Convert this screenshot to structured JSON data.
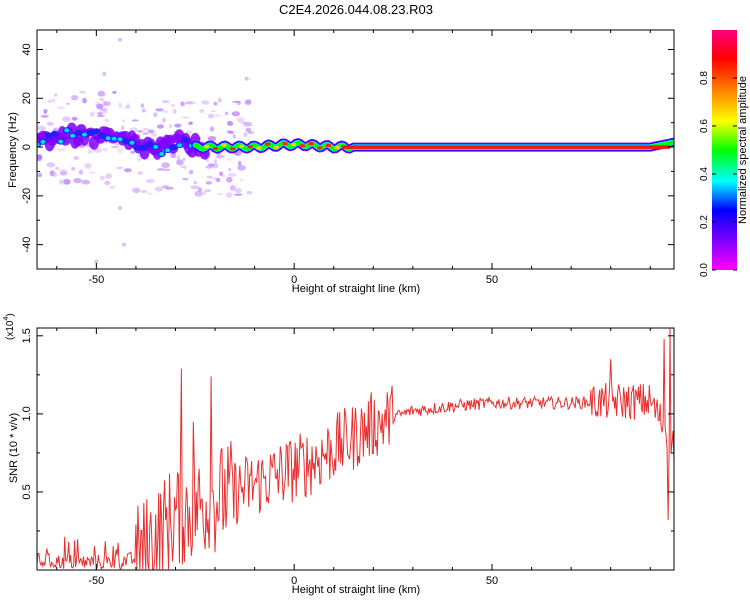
{
  "title": "C2E4.2026.044.08.23.R03",
  "chart_data": [
    {
      "type": "heatmap",
      "xlabel": "Height of straight line (km)",
      "ylabel": "Frequency (Hz)",
      "xlim": [
        -65,
        96
      ],
      "ylim": [
        -50,
        48
      ],
      "xticks": [
        -50,
        0,
        50
      ],
      "yticks": [
        -40,
        -20,
        0,
        20,
        40
      ],
      "xtick_labels": [
        "-50",
        "0",
        "50"
      ],
      "ytick_labels": [
        "-40",
        "-20",
        "0",
        "20",
        "40"
      ],
      "colorbar": {
        "label": "Normalized spectral amplitude",
        "range": [
          0,
          1
        ],
        "ticks": [
          0.0,
          0.2,
          0.4,
          0.6,
          0.8
        ],
        "tick_labels": [
          "0.0",
          "0.2",
          "0.4",
          "0.6",
          "0.8"
        ],
        "colors": [
          "#ff00ff",
          "#8000ff",
          "#0000ff",
          "#00ffff",
          "#00ff00",
          "#ffff00",
          "#ff8000",
          "#ff0000",
          "#ff0080"
        ]
      },
      "ridge": {
        "description_points_x": [
          -65,
          -55,
          -45,
          -35,
          -28,
          -25,
          -20,
          -10,
          -2,
          2,
          10,
          20,
          50,
          90,
          96
        ],
        "frequency_hz": [
          3,
          5,
          3,
          -1,
          2,
          0,
          0,
          0,
          1,
          1,
          0,
          0,
          0,
          0,
          2
        ]
      }
    },
    {
      "type": "line",
      "xlabel": "Height of straight line (km)",
      "ylabel": "SNR (10 * v/v)",
      "y_multiplier_label": "(x10",
      "y_multiplier_exp": "4",
      "xlim": [
        -65,
        96
      ],
      "ylim": [
        0,
        1.55
      ],
      "xticks": [
        -50,
        0,
        50
      ],
      "yticks": [
        0.5,
        1.0,
        1.5
      ],
      "xtick_labels": [
        "-50",
        "0",
        "50"
      ],
      "ytick_labels": [
        "0.5",
        "1.0",
        "1.5"
      ],
      "series": [
        {
          "name": "SNR",
          "color": "#e83030",
          "envelope_x": [
            -65,
            -55,
            -45,
            -40,
            -35,
            -30,
            -25,
            -20,
            -15,
            -10,
            -5,
            0,
            5,
            10,
            15,
            20,
            25,
            30,
            40,
            50,
            60,
            70,
            80,
            85,
            90,
            94,
            96
          ],
          "envelope_y": [
            0.06,
            0.05,
            0.05,
            0.07,
            0.2,
            0.35,
            0.4,
            0.45,
            0.5,
            0.55,
            0.6,
            0.65,
            0.7,
            0.78,
            0.85,
            0.93,
            0.98,
            1.02,
            1.05,
            1.07,
            1.07,
            1.07,
            1.08,
            1.08,
            1.08,
            0.9,
            0.8
          ],
          "spikes": [
            {
              "x": -28.5,
              "y": 1.29
            },
            {
              "x": -21,
              "y": 1.24
            },
            {
              "x": -25.5,
              "y": 0.95
            },
            {
              "x": 80,
              "y": 1.35
            },
            {
              "x": 93.5,
              "y": 1.48
            },
            {
              "x": 95,
              "y": 1.55
            },
            {
              "x": 94.5,
              "y": 0.32
            }
          ]
        }
      ]
    }
  ]
}
